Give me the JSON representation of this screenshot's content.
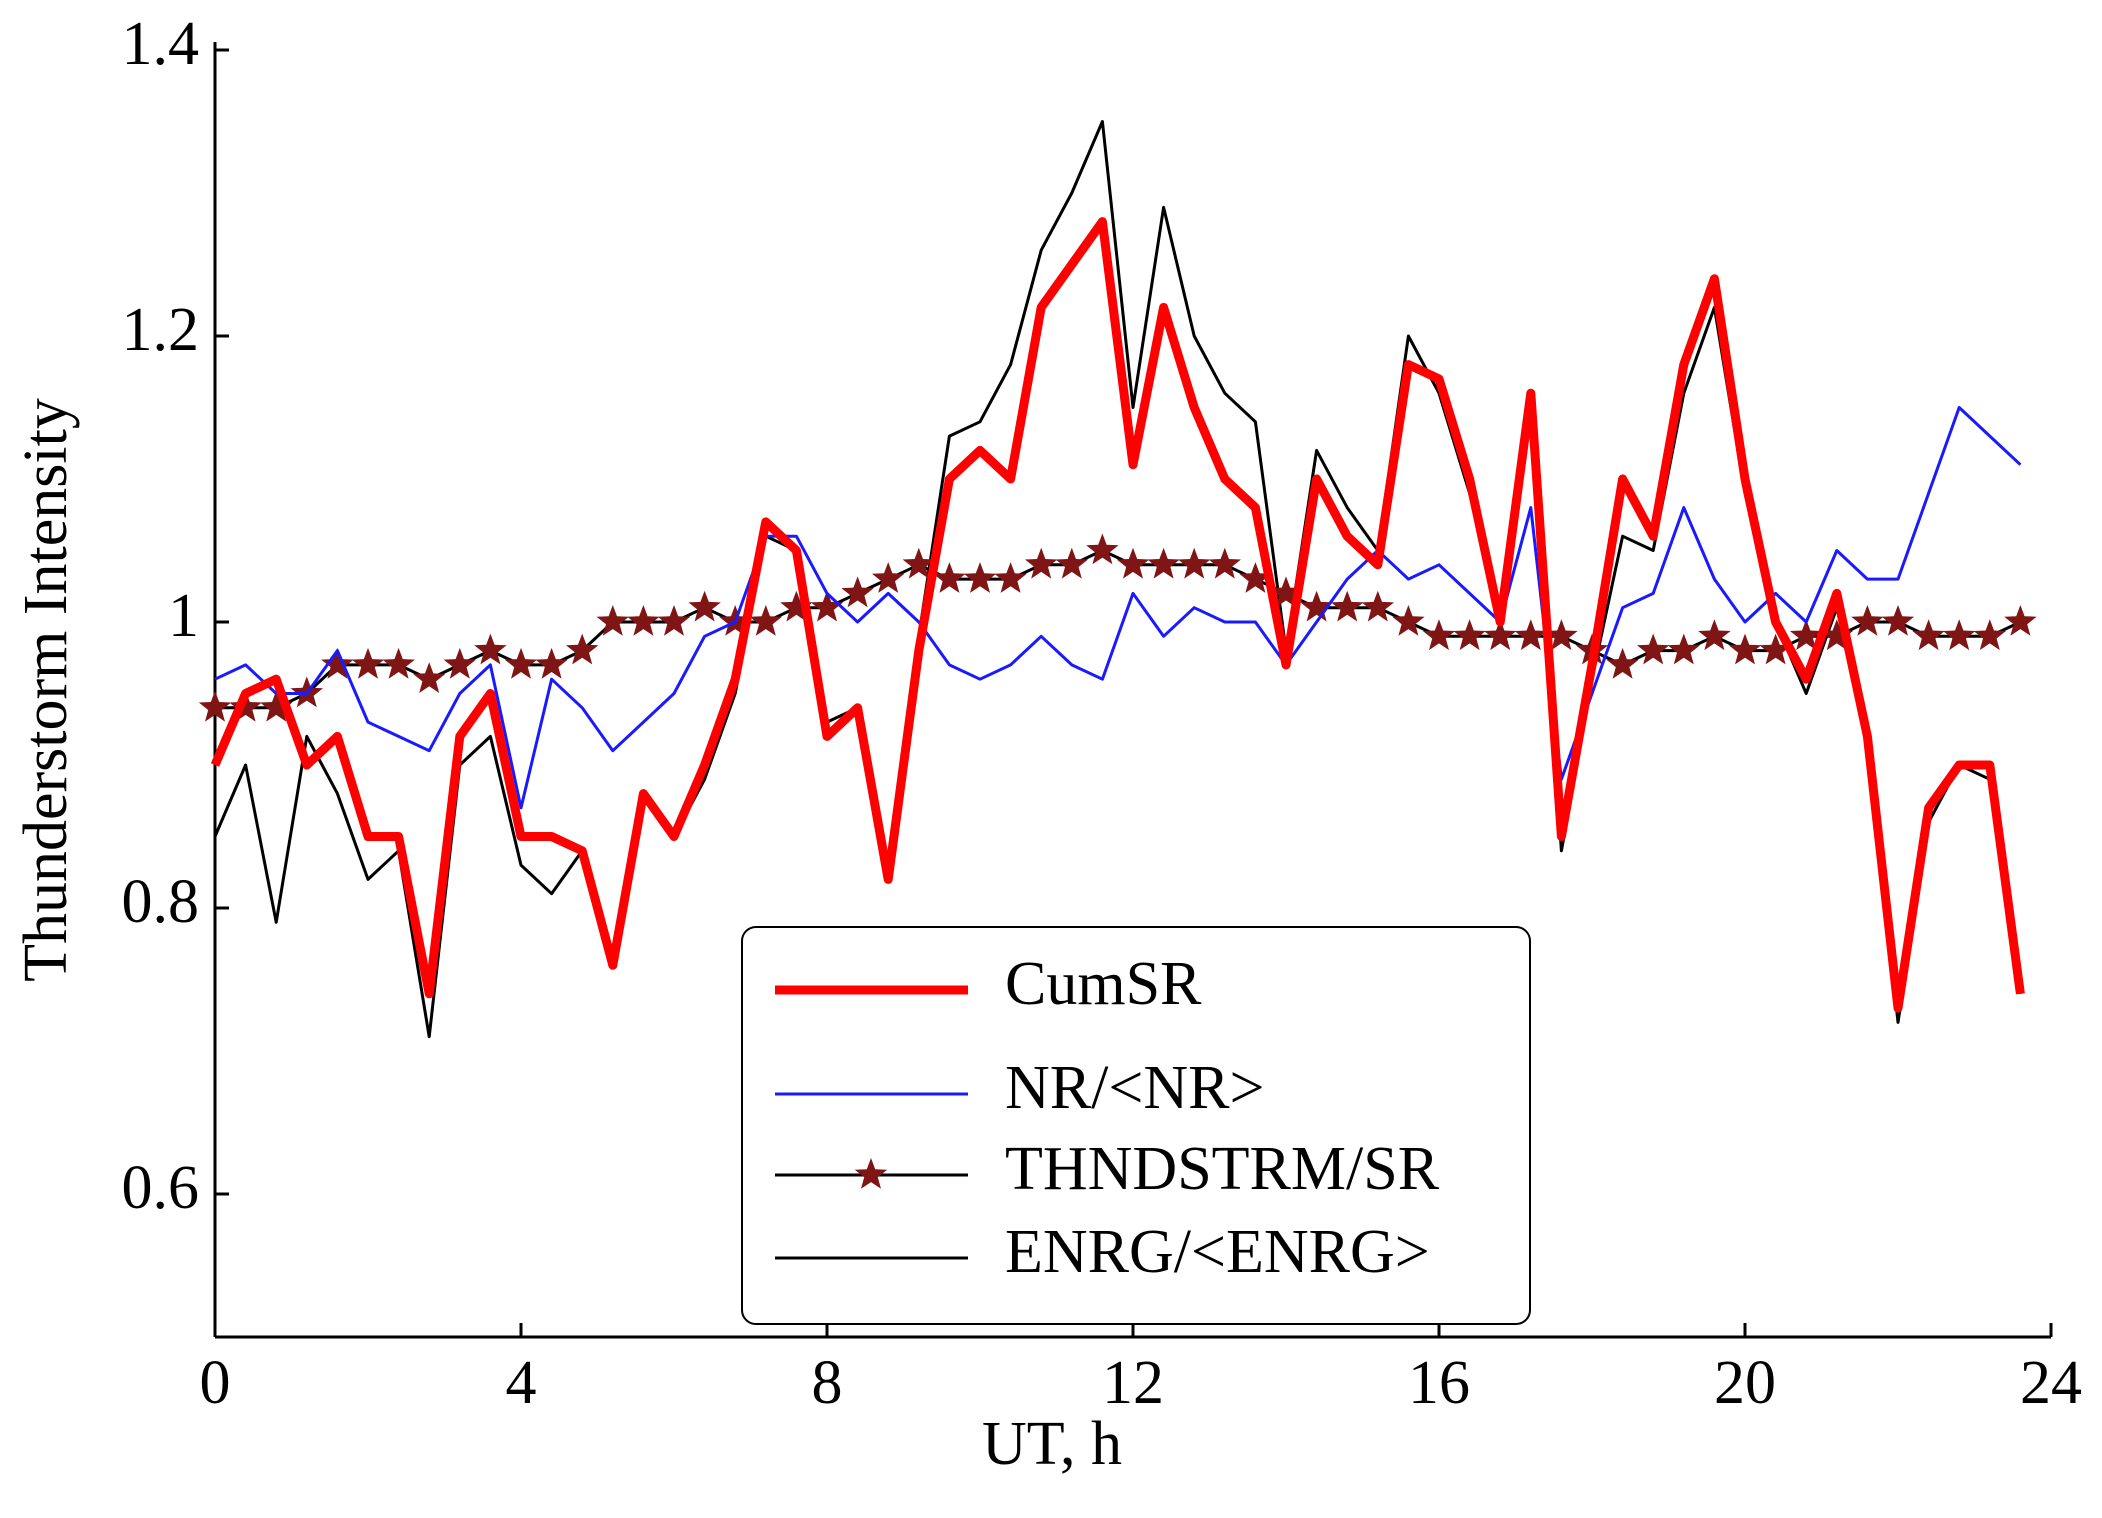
{
  "chart_data": {
    "type": "line",
    "xlabel": "UT, h",
    "ylabel": "Thunderstorm Intensity",
    "xlim": [
      0,
      24
    ],
    "xticks": [
      0,
      4,
      8,
      12,
      16,
      20,
      24
    ],
    "ylim": [
      0.5,
      1.4
    ],
    "yticks": [
      0.6,
      0.8,
      1,
      1.2,
      1.4
    ],
    "legend": "bottom-center",
    "x": [
      0,
      0.4,
      0.8,
      1.2,
      1.6,
      2.0,
      2.4,
      2.8,
      3.2,
      3.6,
      4.0,
      4.4,
      4.8,
      5.2,
      5.6,
      6.0,
      6.4,
      6.8,
      7.2,
      7.6,
      8.0,
      8.4,
      8.8,
      9.2,
      9.6,
      10.0,
      10.4,
      10.8,
      11.2,
      11.6,
      12.0,
      12.4,
      12.8,
      13.2,
      13.6,
      14.0,
      14.4,
      14.8,
      15.2,
      15.6,
      16.0,
      16.4,
      16.8,
      17.2,
      17.6,
      18.0,
      18.4,
      18.8,
      19.2,
      19.6,
      20.0,
      20.4,
      20.8,
      21.2,
      21.6,
      22.0,
      22.4,
      22.8,
      23.2,
      23.6
    ],
    "series": [
      {
        "name": "CumSR",
        "color": "#ff0000",
        "linewidth": 9,
        "values": [
          0.9,
          0.95,
          0.96,
          0.9,
          0.92,
          0.85,
          0.85,
          0.74,
          0.92,
          0.95,
          0.85,
          0.85,
          0.84,
          0.76,
          0.88,
          0.85,
          0.9,
          0.96,
          1.07,
          1.05,
          0.92,
          0.94,
          0.82,
          0.98,
          1.1,
          1.12,
          1.1,
          1.22,
          1.25,
          1.28,
          1.11,
          1.22,
          1.15,
          1.1,
          1.08,
          0.97,
          1.1,
          1.06,
          1.04,
          1.18,
          1.17,
          1.1,
          1.0,
          1.16,
          0.85,
          0.97,
          1.1,
          1.06,
          1.18,
          1.24,
          1.1,
          1.0,
          0.96,
          1.02,
          0.92,
          0.73,
          0.87,
          0.9,
          0.9,
          0.74
        ]
      },
      {
        "name": "NR/<NR>",
        "color": "#1a1aff",
        "linewidth": 3,
        "values": [
          0.96,
          0.97,
          0.95,
          0.95,
          0.98,
          0.93,
          0.92,
          0.91,
          0.95,
          0.97,
          0.87,
          0.96,
          0.94,
          0.91,
          0.93,
          0.95,
          0.99,
          1.0,
          1.06,
          1.06,
          1.02,
          1.0,
          1.02,
          1.0,
          0.97,
          0.96,
          0.97,
          0.99,
          0.97,
          0.96,
          1.02,
          0.99,
          1.01,
          1.0,
          1.0,
          0.97,
          1.0,
          1.03,
          1.05,
          1.03,
          1.04,
          1.02,
          1.0,
          1.08,
          0.89,
          0.95,
          1.01,
          1.02,
          1.08,
          1.03,
          1.0,
          1.02,
          1.0,
          1.05,
          1.03,
          1.03,
          1.09,
          1.15,
          1.13,
          1.11
        ]
      },
      {
        "name": "THNDSTRM/SR",
        "color": "#000000",
        "linewidth": 3,
        "marker": "star",
        "marker_color": "#7f1515",
        "values": [
          0.94,
          0.94,
          0.94,
          0.95,
          0.97,
          0.97,
          0.97,
          0.96,
          0.97,
          0.98,
          0.97,
          0.97,
          0.98,
          1.0,
          1.0,
          1.0,
          1.01,
          1.0,
          1.0,
          1.01,
          1.01,
          1.02,
          1.03,
          1.04,
          1.03,
          1.03,
          1.03,
          1.04,
          1.04,
          1.05,
          1.04,
          1.04,
          1.04,
          1.04,
          1.03,
          1.02,
          1.01,
          1.01,
          1.01,
          1.0,
          0.99,
          0.99,
          0.99,
          0.99,
          0.99,
          0.98,
          0.97,
          0.98,
          0.98,
          0.99,
          0.98,
          0.98,
          0.99,
          0.99,
          1.0,
          1.0,
          0.99,
          0.99,
          0.99,
          1.0
        ]
      },
      {
        "name": "ENRG/<ENRG>",
        "color": "#000000",
        "linewidth": 3,
        "values": [
          0.85,
          0.9,
          0.79,
          0.92,
          0.88,
          0.82,
          0.84,
          0.71,
          0.9,
          0.92,
          0.83,
          0.81,
          0.84,
          0.76,
          0.88,
          0.85,
          0.89,
          0.95,
          1.06,
          1.05,
          0.93,
          0.94,
          0.83,
          0.99,
          1.13,
          1.14,
          1.18,
          1.26,
          1.3,
          1.35,
          1.15,
          1.29,
          1.2,
          1.16,
          1.14,
          0.98,
          1.12,
          1.08,
          1.05,
          1.2,
          1.16,
          1.09,
          1.0,
          1.15,
          0.84,
          0.96,
          1.06,
          1.05,
          1.16,
          1.22,
          1.09,
          1.0,
          0.95,
          1.01,
          0.92,
          0.72,
          0.86,
          0.9,
          0.89,
          0.74
        ]
      }
    ]
  }
}
